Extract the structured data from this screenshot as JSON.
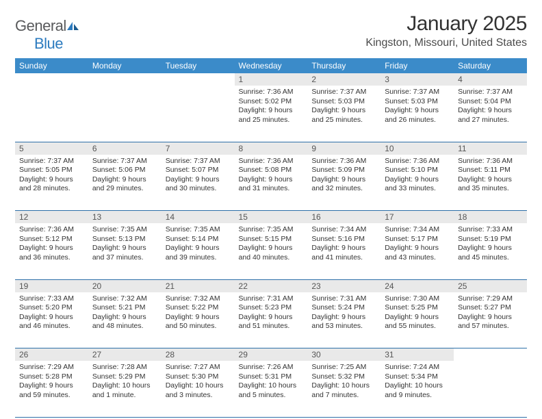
{
  "logo": {
    "text1": "General",
    "text2": "Blue"
  },
  "title": "January 2025",
  "location": "Kingston, Missouri, United States",
  "header_bg": "#3b8bc9",
  "row_divider": "#2c6fa8",
  "daynum_bg": "#e9e9e9",
  "weekdays": [
    "Sunday",
    "Monday",
    "Tuesday",
    "Wednesday",
    "Thursday",
    "Friday",
    "Saturday"
  ],
  "weeks": [
    {
      "nums": [
        "",
        "",
        "",
        "1",
        "2",
        "3",
        "4"
      ],
      "cells": [
        null,
        null,
        null,
        {
          "sunrise": "7:36 AM",
          "sunset": "5:02 PM",
          "daylight": "9 hours and 25 minutes."
        },
        {
          "sunrise": "7:37 AM",
          "sunset": "5:03 PM",
          "daylight": "9 hours and 25 minutes."
        },
        {
          "sunrise": "7:37 AM",
          "sunset": "5:03 PM",
          "daylight": "9 hours and 26 minutes."
        },
        {
          "sunrise": "7:37 AM",
          "sunset": "5:04 PM",
          "daylight": "9 hours and 27 minutes."
        }
      ]
    },
    {
      "nums": [
        "5",
        "6",
        "7",
        "8",
        "9",
        "10",
        "11"
      ],
      "cells": [
        {
          "sunrise": "7:37 AM",
          "sunset": "5:05 PM",
          "daylight": "9 hours and 28 minutes."
        },
        {
          "sunrise": "7:37 AM",
          "sunset": "5:06 PM",
          "daylight": "9 hours and 29 minutes."
        },
        {
          "sunrise": "7:37 AM",
          "sunset": "5:07 PM",
          "daylight": "9 hours and 30 minutes."
        },
        {
          "sunrise": "7:36 AM",
          "sunset": "5:08 PM",
          "daylight": "9 hours and 31 minutes."
        },
        {
          "sunrise": "7:36 AM",
          "sunset": "5:09 PM",
          "daylight": "9 hours and 32 minutes."
        },
        {
          "sunrise": "7:36 AM",
          "sunset": "5:10 PM",
          "daylight": "9 hours and 33 minutes."
        },
        {
          "sunrise": "7:36 AM",
          "sunset": "5:11 PM",
          "daylight": "9 hours and 35 minutes."
        }
      ]
    },
    {
      "nums": [
        "12",
        "13",
        "14",
        "15",
        "16",
        "17",
        "18"
      ],
      "cells": [
        {
          "sunrise": "7:36 AM",
          "sunset": "5:12 PM",
          "daylight": "9 hours and 36 minutes."
        },
        {
          "sunrise": "7:35 AM",
          "sunset": "5:13 PM",
          "daylight": "9 hours and 37 minutes."
        },
        {
          "sunrise": "7:35 AM",
          "sunset": "5:14 PM",
          "daylight": "9 hours and 39 minutes."
        },
        {
          "sunrise": "7:35 AM",
          "sunset": "5:15 PM",
          "daylight": "9 hours and 40 minutes."
        },
        {
          "sunrise": "7:34 AM",
          "sunset": "5:16 PM",
          "daylight": "9 hours and 41 minutes."
        },
        {
          "sunrise": "7:34 AM",
          "sunset": "5:17 PM",
          "daylight": "9 hours and 43 minutes."
        },
        {
          "sunrise": "7:33 AM",
          "sunset": "5:19 PM",
          "daylight": "9 hours and 45 minutes."
        }
      ]
    },
    {
      "nums": [
        "19",
        "20",
        "21",
        "22",
        "23",
        "24",
        "25"
      ],
      "cells": [
        {
          "sunrise": "7:33 AM",
          "sunset": "5:20 PM",
          "daylight": "9 hours and 46 minutes."
        },
        {
          "sunrise": "7:32 AM",
          "sunset": "5:21 PM",
          "daylight": "9 hours and 48 minutes."
        },
        {
          "sunrise": "7:32 AM",
          "sunset": "5:22 PM",
          "daylight": "9 hours and 50 minutes."
        },
        {
          "sunrise": "7:31 AM",
          "sunset": "5:23 PM",
          "daylight": "9 hours and 51 minutes."
        },
        {
          "sunrise": "7:31 AM",
          "sunset": "5:24 PM",
          "daylight": "9 hours and 53 minutes."
        },
        {
          "sunrise": "7:30 AM",
          "sunset": "5:25 PM",
          "daylight": "9 hours and 55 minutes."
        },
        {
          "sunrise": "7:29 AM",
          "sunset": "5:27 PM",
          "daylight": "9 hours and 57 minutes."
        }
      ]
    },
    {
      "nums": [
        "26",
        "27",
        "28",
        "29",
        "30",
        "31",
        ""
      ],
      "cells": [
        {
          "sunrise": "7:29 AM",
          "sunset": "5:28 PM",
          "daylight": "9 hours and 59 minutes."
        },
        {
          "sunrise": "7:28 AM",
          "sunset": "5:29 PM",
          "daylight": "10 hours and 1 minute."
        },
        {
          "sunrise": "7:27 AM",
          "sunset": "5:30 PM",
          "daylight": "10 hours and 3 minutes."
        },
        {
          "sunrise": "7:26 AM",
          "sunset": "5:31 PM",
          "daylight": "10 hours and 5 minutes."
        },
        {
          "sunrise": "7:25 AM",
          "sunset": "5:32 PM",
          "daylight": "10 hours and 7 minutes."
        },
        {
          "sunrise": "7:24 AM",
          "sunset": "5:34 PM",
          "daylight": "10 hours and 9 minutes."
        },
        null
      ]
    }
  ],
  "labels": {
    "sunrise": "Sunrise: ",
    "sunset": "Sunset: ",
    "daylight": "Daylight: "
  }
}
